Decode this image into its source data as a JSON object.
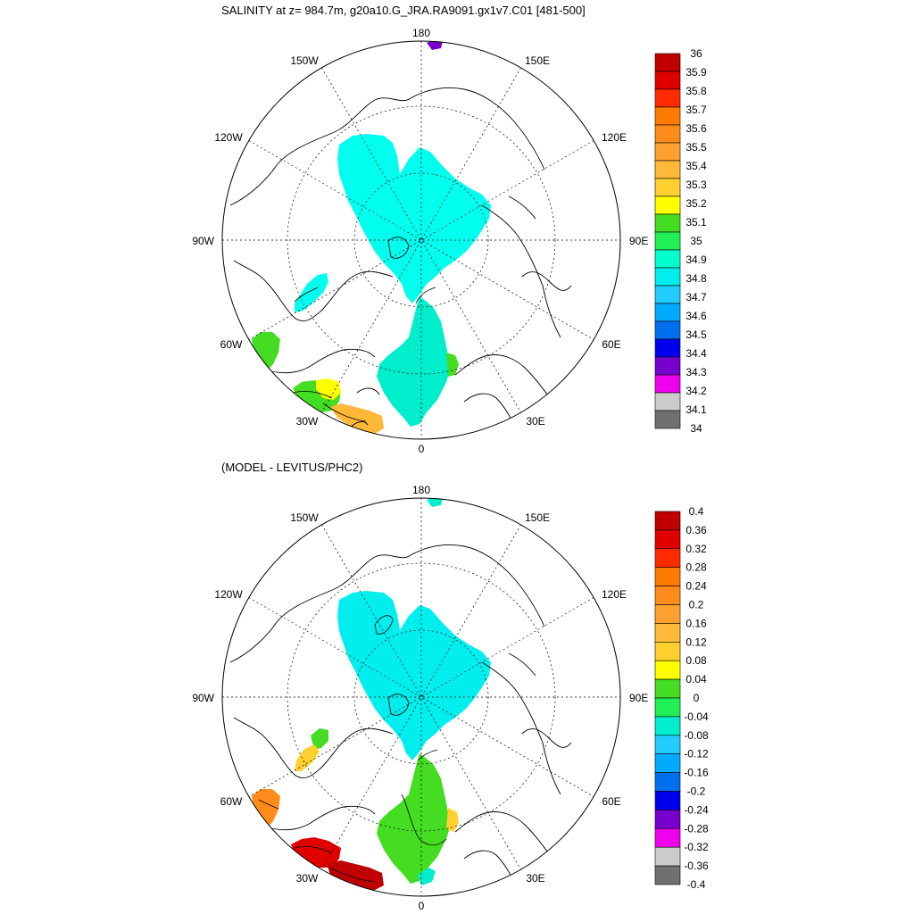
{
  "panels": [
    {
      "title": "SALINITY at z= 984.7m, g20a10.G_JRA.RA9091.gx1v7.C01 [481-500]",
      "lon_labels": {
        "top": "180",
        "bottom": "0",
        "left": "90W",
        "right": "90E",
        "ul1": "150W",
        "ul2": "120W",
        "ur1": "150E",
        "ur2": "120E",
        "ll1": "60W",
        "ll2": "30W",
        "lr1": "60E",
        "lr2": "30E"
      },
      "colorbar": {
        "labels": [
          "36",
          "35.9",
          "35.8",
          "35.7",
          "35.6",
          "35.5",
          "35.4",
          "35.3",
          "35.2",
          "35.1",
          "35",
          "34.9",
          "34.8",
          "34.7",
          "34.6",
          "34.5",
          "34.4",
          "34.3",
          "34.2",
          "34.1",
          "34"
        ],
        "colors": [
          "#c00000",
          "#e00000",
          "#ff2a00",
          "#ff7a00",
          "#ff8c1a",
          "#ffa030",
          "#ffb838",
          "#ffd030",
          "#ffff00",
          "#44dd22",
          "#22ee55",
          "#00ffcc",
          "#00eeee",
          "#22ccff",
          "#00aaff",
          "#0070ee",
          "#0000ee",
          "#7700cc",
          "#ee00ee",
          "#cccccc",
          "#707070"
        ]
      }
    },
    {
      "title": "(MODEL - LEVITUS/PHC2)",
      "lon_labels": {
        "top": "180",
        "bottom": "0",
        "left": "90W",
        "right": "90E",
        "ul1": "150W",
        "ul2": "120W",
        "ur1": "150E",
        "ur2": "120E",
        "ll1": "60W",
        "ll2": "30W",
        "lr1": "60E",
        "lr2": "30E"
      },
      "colorbar": {
        "labels": [
          "0.4",
          "0.36",
          "0.32",
          "0.28",
          "0.24",
          "0.2",
          "0.16",
          "0.12",
          "0.08",
          "0.04",
          "0",
          "-0.04",
          "-0.08",
          "-0.12",
          "-0.16",
          "-0.2",
          "-0.24",
          "-0.28",
          "-0.32",
          "-0.36",
          "-0.4"
        ],
        "colors": [
          "#c00000",
          "#e00000",
          "#ff2a00",
          "#ff7a00",
          "#ff8c1a",
          "#ffa030",
          "#ffb838",
          "#ffd030",
          "#ffff00",
          "#44dd22",
          "#22ee55",
          "#00eecc",
          "#22ccff",
          "#00aaff",
          "#0070ee",
          "#0000ee",
          "#7700cc",
          "#ee00ee",
          "#cccccc",
          "#707070"
        ]
      }
    }
  ],
  "fields": {
    "top_main": "#00ffee",
    "top_nordic": "#00eecc",
    "top_green": "#44dd22",
    "top_yellow": "#ffff00",
    "top_orange": "#ffb838",
    "top_purple": "#7700cc",
    "bottom_main": "#00eeee",
    "bottom_green": "#44dd22",
    "bottom_nordic_cyan": "#00eecc",
    "bottom_yellow": "#ffd030",
    "bottom_orange": "#ff8c1a",
    "bottom_red": "#e00000",
    "bottom_darkred": "#c00000"
  }
}
